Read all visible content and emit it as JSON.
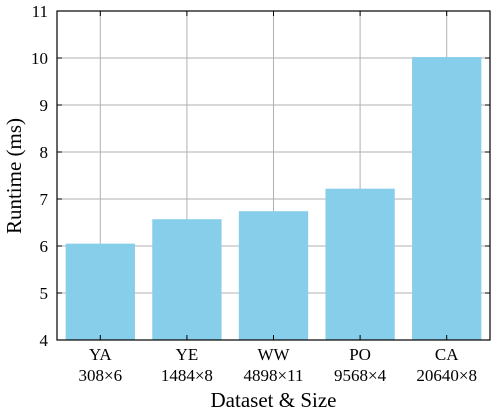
{
  "chart_data": {
    "type": "bar",
    "categories": [
      "YA",
      "YE",
      "WW",
      "PO",
      "CA"
    ],
    "category_sizes": [
      "308×6",
      "1484×8",
      "4898×11",
      "9568×4",
      "20640×8"
    ],
    "values": [
      6.05,
      6.57,
      6.74,
      7.22,
      10.02
    ],
    "xlabel": "Dataset & Size",
    "ylabel": "Runtime (ms)",
    "ylim": [
      4,
      11
    ],
    "yticks": [
      4,
      5,
      6,
      7,
      8,
      9,
      10,
      11
    ],
    "grid": true,
    "bar_color": "#87ceeb",
    "grid_color": "#b0b0b0"
  }
}
